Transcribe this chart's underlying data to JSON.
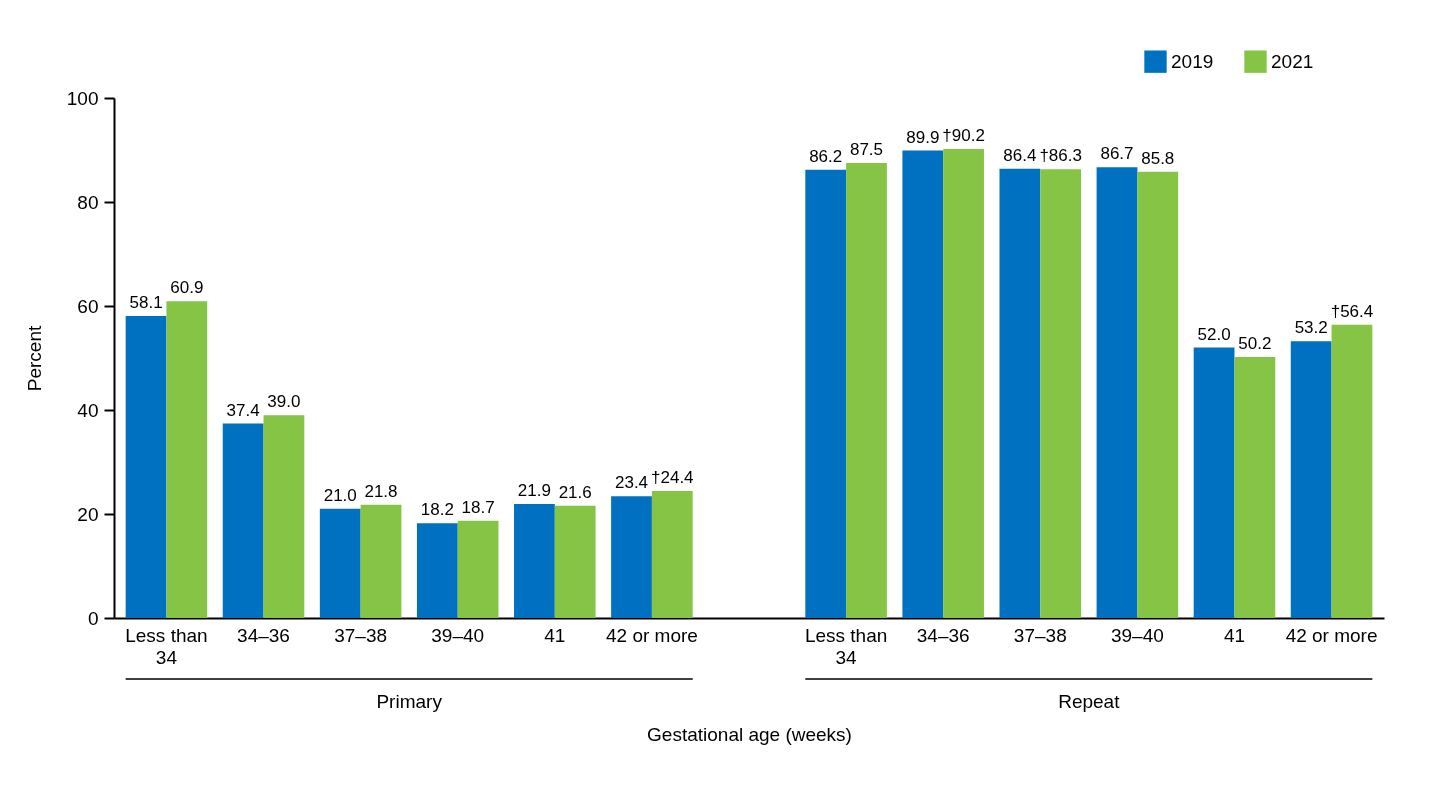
{
  "chart_data": {
    "type": "bar",
    "ylabel": "Percent",
    "xlabel": "Gestational age (weeks)",
    "categories": [
      "Less than 34",
      "34–36",
      "37–38",
      "39–40",
      "41",
      "42 or more",
      "Less than 34",
      "34–36",
      "37–38",
      "39–40",
      "41",
      "42 or more"
    ],
    "annotations": [
      "Primary",
      "Repeat"
    ],
    "series": [
      {
        "name": "2019",
        "color": "#0070c0",
        "values": [
          58.1,
          37.4,
          21.0,
          18.2,
          21.9,
          23.4,
          86.2,
          89.9,
          86.4,
          86.7,
          52.0,
          53.2
        ],
        "value_labels": [
          "58.1",
          "37.4",
          "21.0",
          "18.2",
          "21.9",
          "23.4",
          "86.2",
          "89.9",
          "86.4",
          "86.7",
          "52.0",
          "53.2"
        ]
      },
      {
        "name": "2021",
        "color": "#86c446",
        "values": [
          60.9,
          39.0,
          21.8,
          18.7,
          21.6,
          24.4,
          87.5,
          90.2,
          86.3,
          85.8,
          50.2,
          56.4
        ],
        "value_labels": [
          "60.9",
          "39.0",
          "21.8",
          "18.7",
          "21.6",
          "†24.4",
          "87.5",
          "†90.2",
          "†86.3",
          "85.8",
          "50.2",
          "†56.4"
        ]
      }
    ],
    "ylim": [
      0,
      100
    ],
    "yticks": [
      0,
      20,
      40,
      60,
      80,
      100
    ],
    "grid": false,
    "legend": "top right"
  }
}
